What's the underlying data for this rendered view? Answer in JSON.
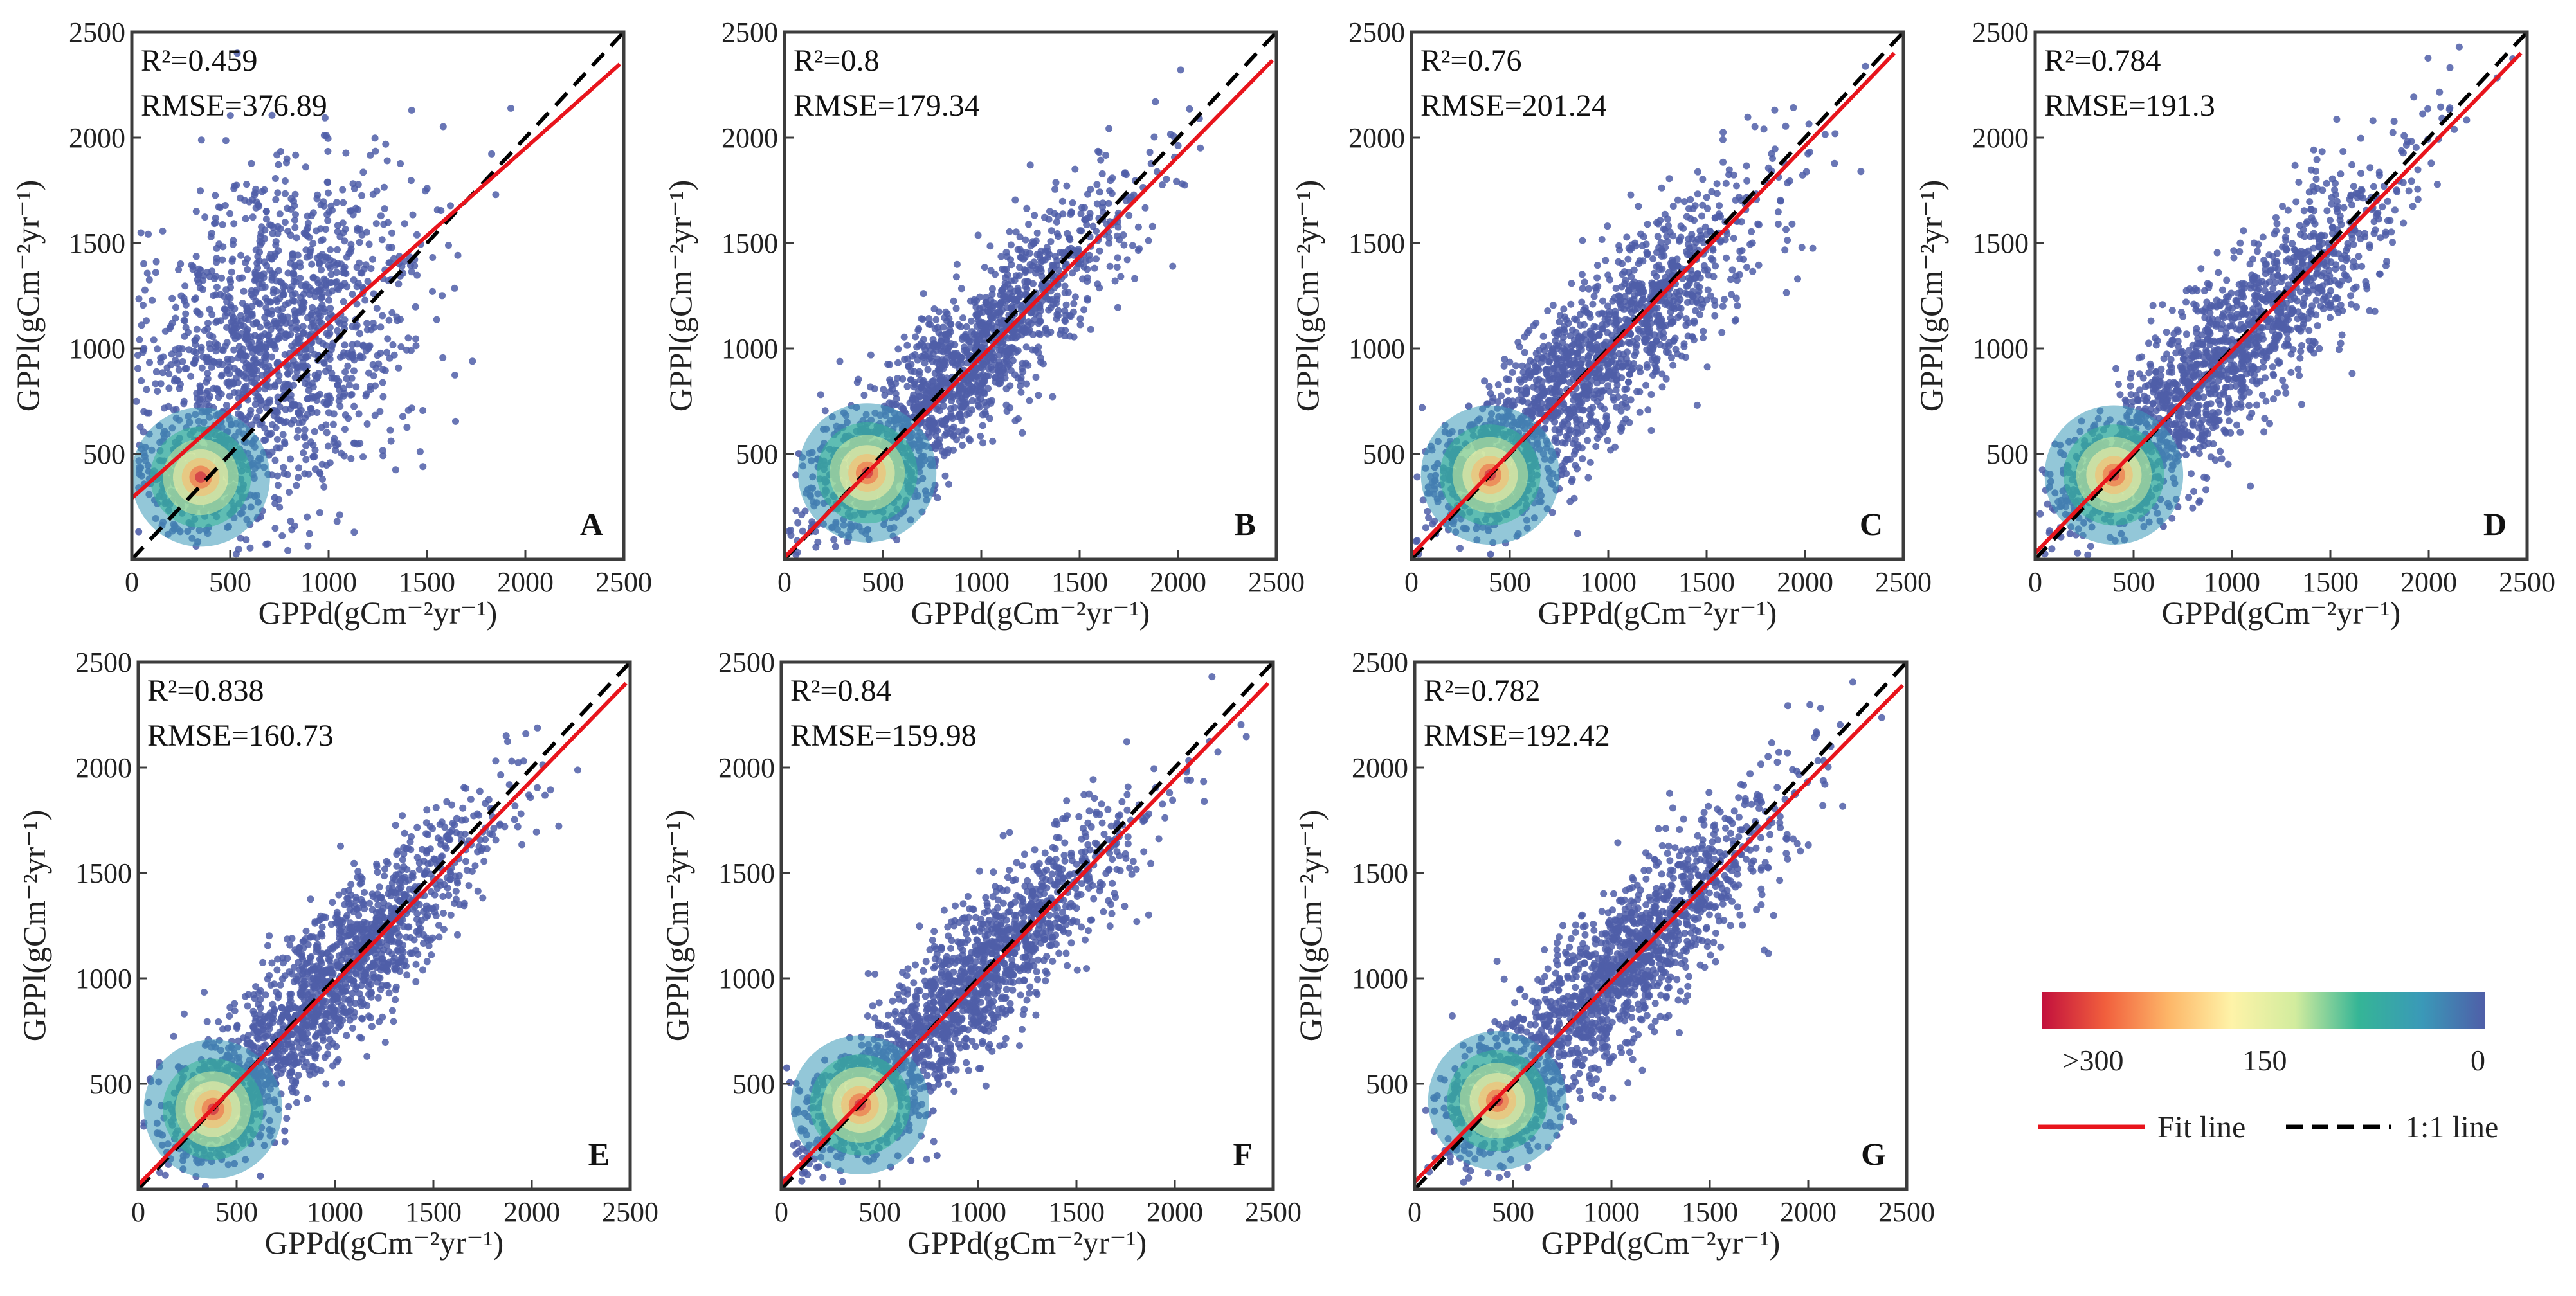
{
  "figure": {
    "density_legend": {
      "labels": [
        ">300",
        "150",
        "0"
      ],
      "colors": [
        "#c2103d",
        "#f15f3d",
        "#fdb668",
        "#fef3a8",
        "#d2ec9e",
        "#35b596",
        "#3a99b8",
        "#4f5ea8"
      ]
    },
    "line_legend": {
      "fit_label": "Fit line",
      "one_to_one_label": "1:1 line",
      "fit_color": "#e8141c",
      "one_to_one_color": "#000000"
    },
    "point_color": "#4f5ea8"
  },
  "chart_data": [
    {
      "type": "scatter",
      "panel": "A",
      "xlabel": "GPPd(gCm⁻²yr⁻¹)",
      "ylabel": "GPPl(gCm⁻²yr⁻¹)",
      "xlim": [
        0,
        2500
      ],
      "ylim": [
        0,
        2500
      ],
      "xticks": [
        0,
        500,
        1000,
        1500,
        2000,
        2500
      ],
      "yticks": [
        500,
        1000,
        1500,
        2000,
        2500
      ],
      "r2_text": "R²=0.459",
      "rmse_text": "RMSE=376.89",
      "fit_line": {
        "intercept": 290,
        "slope": 0.83
      },
      "hotspot": [
        350,
        390
      ],
      "cloud": {
        "center": [
          700,
          1000
        ],
        "spread_x": 360,
        "spread_y": 420,
        "corr": 0.35
      }
    },
    {
      "type": "scatter",
      "panel": "B",
      "xlabel": "GPPd(gCm⁻²yr⁻¹)",
      "ylabel": "GPPl(gCm⁻²yr⁻¹)",
      "xlim": [
        0,
        2500
      ],
      "ylim": [
        0,
        2500
      ],
      "xticks": [
        0,
        500,
        1000,
        1500,
        2000,
        2500
      ],
      "yticks": [
        500,
        1000,
        1500,
        2000,
        2500
      ],
      "r2_text": "R²=0.8",
      "rmse_text": "RMSE=179.34",
      "fit_line": {
        "intercept": 10,
        "slope": 0.95
      },
      "hotspot": [
        420,
        410
      ],
      "cloud": {
        "center": [
          900,
          900
        ],
        "spread_x": 420,
        "spread_y": 420,
        "corr": 0.9
      }
    },
    {
      "type": "scatter",
      "panel": "C",
      "xlabel": "GPPd(gCm⁻²yr⁻¹)",
      "ylabel": "GPPl(gCm⁻²yr⁻¹)",
      "xlim": [
        0,
        2500
      ],
      "ylim": [
        0,
        2500
      ],
      "xticks": [
        0,
        500,
        1000,
        1500,
        2000,
        2500
      ],
      "yticks": [
        500,
        1000,
        1500,
        2000,
        2500
      ],
      "r2_text": "R²=0.76",
      "rmse_text": "RMSE=201.24",
      "fit_line": {
        "intercept": 20,
        "slope": 0.97
      },
      "hotspot": [
        400,
        400
      ],
      "cloud": {
        "center": [
          950,
          950
        ],
        "spread_x": 430,
        "spread_y": 430,
        "corr": 0.87
      }
    },
    {
      "type": "scatter",
      "panel": "D",
      "xlabel": "GPPd(gCm⁻²yr⁻¹)",
      "ylabel": "GPPl(gCm⁻²yr⁻¹)",
      "xlim": [
        0,
        2500
      ],
      "ylim": [
        0,
        2500
      ],
      "xticks": [
        0,
        500,
        1000,
        1500,
        2000,
        2500
      ],
      "yticks": [
        500,
        1000,
        1500,
        2000,
        2500
      ],
      "r2_text": "R²=0.784",
      "rmse_text": "RMSE=191.3",
      "fit_line": {
        "intercept": 30,
        "slope": 0.96
      },
      "hotspot": [
        400,
        400
      ],
      "cloud": {
        "center": [
          1000,
          1000
        ],
        "spread_x": 430,
        "spread_y": 430,
        "corr": 0.88
      }
    },
    {
      "type": "scatter",
      "panel": "E",
      "xlabel": "GPPd(gCm⁻²yr⁻¹)",
      "ylabel": "GPPl(gCm⁻²yr⁻¹)",
      "xlim": [
        0,
        2500
      ],
      "ylim": [
        0,
        2500
      ],
      "xticks": [
        0,
        500,
        1000,
        1500,
        2000,
        2500
      ],
      "yticks": [
        500,
        1000,
        1500,
        2000,
        2500
      ],
      "r2_text": "R²=0.838",
      "rmse_text": "RMSE=160.73",
      "fit_line": {
        "intercept": 20,
        "slope": 0.96
      },
      "hotspot": [
        380,
        380
      ],
      "cloud": {
        "center": [
          950,
          950
        ],
        "spread_x": 430,
        "spread_y": 430,
        "corr": 0.91
      }
    },
    {
      "type": "scatter",
      "panel": "F",
      "xlabel": "GPPd(gCm⁻²yr⁻¹)",
      "ylabel": "GPPl(gCm⁻²yr⁻¹)",
      "xlim": [
        0,
        2500
      ],
      "ylim": [
        0,
        2500
      ],
      "xticks": [
        0,
        500,
        1000,
        1500,
        2000,
        2500
      ],
      "yticks": [
        500,
        1000,
        1500,
        2000,
        2500
      ],
      "r2_text": "R²=0.84",
      "rmse_text": "RMSE=159.98",
      "fit_line": {
        "intercept": 25,
        "slope": 0.96
      },
      "hotspot": [
        400,
        400
      ],
      "cloud": {
        "center": [
          950,
          950
        ],
        "spread_x": 420,
        "spread_y": 420,
        "corr": 0.91
      }
    },
    {
      "type": "scatter",
      "panel": "G",
      "xlabel": "GPPd(gCm⁻²yr⁻¹)",
      "ylabel": "GPPl(gCm⁻²yr⁻¹)",
      "xlim": [
        0,
        2500
      ],
      "ylim": [
        0,
        2500
      ],
      "xticks": [
        0,
        500,
        1000,
        1500,
        2000,
        2500
      ],
      "yticks": [
        500,
        1000,
        1500,
        2000,
        2500
      ],
      "r2_text": "R²=0.782",
      "rmse_text": "RMSE=192.42",
      "fit_line": {
        "intercept": 35,
        "slope": 0.95
      },
      "hotspot": [
        420,
        420
      ],
      "cloud": {
        "center": [
          1000,
          1000
        ],
        "spread_x": 420,
        "spread_y": 420,
        "corr": 0.88
      }
    }
  ]
}
